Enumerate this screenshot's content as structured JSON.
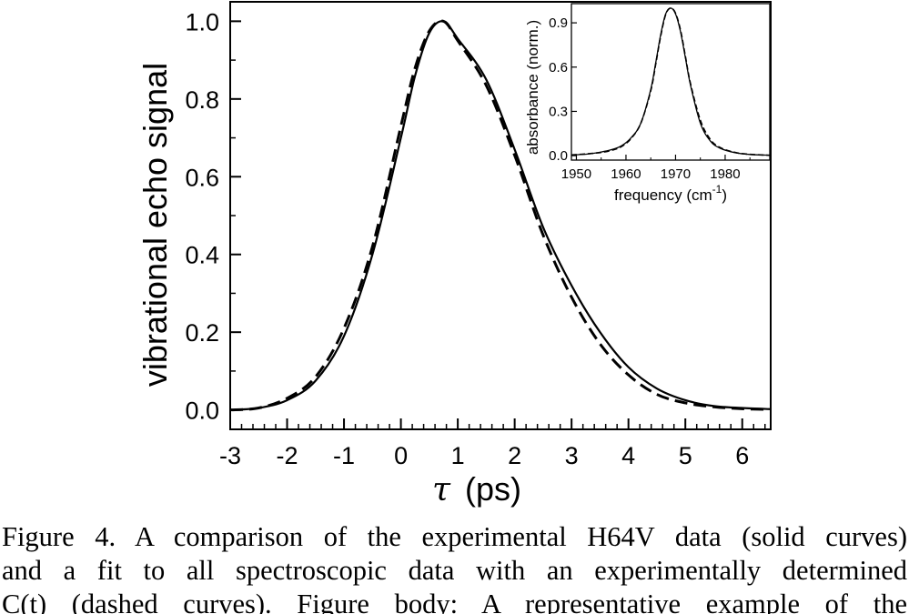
{
  "chart_data": [
    {
      "type": "line",
      "title": "",
      "xlabel_symbol": "τ",
      "xlabel": "(ps)",
      "ylabel": "vibrational echo signal",
      "xlim": [
        -3,
        6.5
      ],
      "ylim": [
        -0.05,
        1.05
      ],
      "x_ticks": [
        -3,
        -2,
        -1,
        0,
        1,
        2,
        3,
        4,
        5,
        6
      ],
      "x_tick_labels": [
        "-3",
        "-2",
        "-1",
        "0",
        "1",
        "2",
        "3",
        "4",
        "5",
        "6"
      ],
      "y_ticks": [
        0.0,
        0.2,
        0.4,
        0.6,
        0.8,
        1.0
      ],
      "y_tick_labels": [
        "0.0",
        "0.2",
        "0.4",
        "0.6",
        "0.8",
        "1.0"
      ],
      "legend": "none",
      "grid": false,
      "series": [
        {
          "style": "solid",
          "x": [
            -3,
            -2.5,
            -2,
            -1.5,
            -1,
            -0.5,
            0,
            0.25,
            0.5,
            0.75,
            1,
            1.5,
            2,
            2.5,
            3,
            3.5,
            4,
            4.5,
            5,
            5.5,
            6,
            6.5
          ],
          "y": [
            0.0,
            0.005,
            0.025,
            0.075,
            0.19,
            0.4,
            0.7,
            0.86,
            0.97,
            1.0,
            0.955,
            0.85,
            0.67,
            0.47,
            0.32,
            0.2,
            0.11,
            0.055,
            0.025,
            0.01,
            0.005,
            0.002
          ]
        },
        {
          "style": "dashed",
          "x": [
            -3,
            -2.5,
            -2,
            -1.5,
            -1,
            -0.5,
            0,
            0.25,
            0.5,
            0.75,
            1,
            1.5,
            2,
            2.5,
            3,
            3.5,
            4,
            4.5,
            5,
            5.5,
            6,
            6.5
          ],
          "y": [
            0.0,
            0.005,
            0.03,
            0.085,
            0.21,
            0.42,
            0.73,
            0.88,
            0.975,
            1.0,
            0.95,
            0.835,
            0.655,
            0.45,
            0.29,
            0.17,
            0.09,
            0.04,
            0.018,
            0.008,
            0.003,
            0.001
          ]
        }
      ]
    },
    {
      "type": "line",
      "title": "",
      "xlabel": "frequency (cm",
      "xlabel_sup": "-1",
      "xlabel_close": ")",
      "ylabel": "absorbance (norm.)",
      "xlim": [
        1949,
        1989
      ],
      "ylim": [
        -0.03,
        1.03
      ],
      "x_ticks": [
        1950,
        1960,
        1970,
        1980
      ],
      "x_tick_labels": [
        "1950",
        "1960",
        "1970",
        "1980"
      ],
      "y_ticks": [
        0.0,
        0.3,
        0.6,
        0.9
      ],
      "y_tick_labels": [
        "0.0",
        "0.3",
        "0.6",
        "0.9"
      ],
      "legend": "none",
      "grid": false,
      "series": [
        {
          "style": "solid",
          "x": [
            1949,
            1952,
            1955,
            1957,
            1959,
            1961,
            1963,
            1965,
            1966,
            1967,
            1968,
            1969,
            1970,
            1971,
            1972,
            1973,
            1975,
            1977,
            1979,
            1982,
            1985,
            1989
          ],
          "y": [
            0.005,
            0.01,
            0.025,
            0.04,
            0.065,
            0.12,
            0.22,
            0.45,
            0.63,
            0.82,
            0.96,
            1.0,
            0.96,
            0.84,
            0.66,
            0.48,
            0.22,
            0.1,
            0.05,
            0.02,
            0.008,
            0.003
          ]
        },
        {
          "style": "dashed",
          "x": [
            1949,
            1952,
            1955,
            1957,
            1959,
            1961,
            1963,
            1965,
            1966,
            1967,
            1968,
            1969,
            1970,
            1971,
            1972,
            1973,
            1975,
            1977,
            1979,
            1982,
            1985,
            1989
          ],
          "y": [
            0.005,
            0.012,
            0.022,
            0.035,
            0.06,
            0.115,
            0.22,
            0.44,
            0.62,
            0.81,
            0.955,
            1.0,
            0.965,
            0.85,
            0.67,
            0.49,
            0.24,
            0.11,
            0.055,
            0.022,
            0.009,
            0.003
          ]
        }
      ]
    }
  ],
  "caption": {
    "line1": "Figure 4.  A comparison of the experimental H64V data (solid curves)",
    "line2": "and a fit to all spectroscopic data with an experimentally determined",
    "line3": "C(t) (dashed curves). Figure body:  A representative example of the"
  }
}
